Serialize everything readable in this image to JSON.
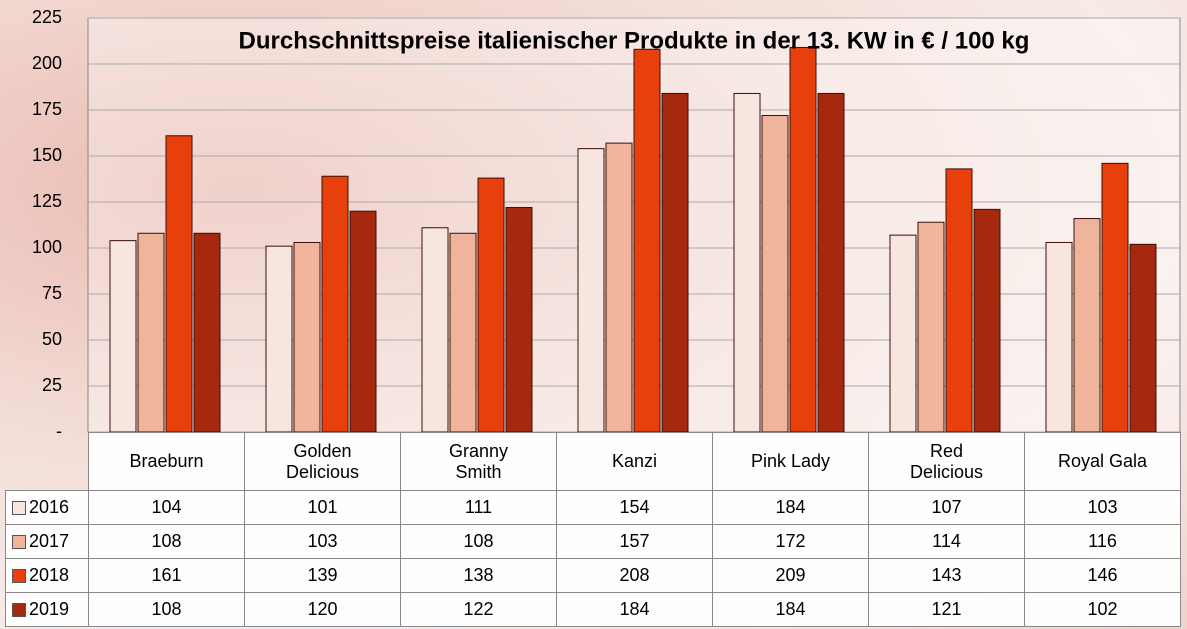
{
  "chart_data": {
    "type": "bar",
    "title": "Durchschnittspreise italienischer Produkte in der 13. KW in € / 100 kg",
    "categories": [
      "Braeburn",
      "Golden Delicious",
      "Granny Smith",
      "Kanzi",
      "Pink Lady",
      "Red Delicious",
      "Royal Gala"
    ],
    "series": [
      {
        "name": "2016",
        "color": "#f6e6df",
        "values": [
          104,
          101,
          111,
          154,
          184,
          107,
          103
        ]
      },
      {
        "name": "2017",
        "color": "#efb49b",
        "values": [
          108,
          103,
          108,
          157,
          172,
          114,
          116
        ]
      },
      {
        "name": "2018",
        "color": "#e8400c",
        "values": [
          161,
          139,
          138,
          208,
          209,
          143,
          146
        ]
      },
      {
        "name": "2019",
        "color": "#a6290f",
        "values": [
          108,
          120,
          122,
          184,
          184,
          121,
          102
        ]
      }
    ],
    "ylim": [
      0,
      225
    ],
    "yticks": [
      {
        "value": 0,
        "label": "-"
      },
      25,
      50,
      75,
      100,
      125,
      150,
      175,
      200,
      225
    ],
    "grid": true
  }
}
